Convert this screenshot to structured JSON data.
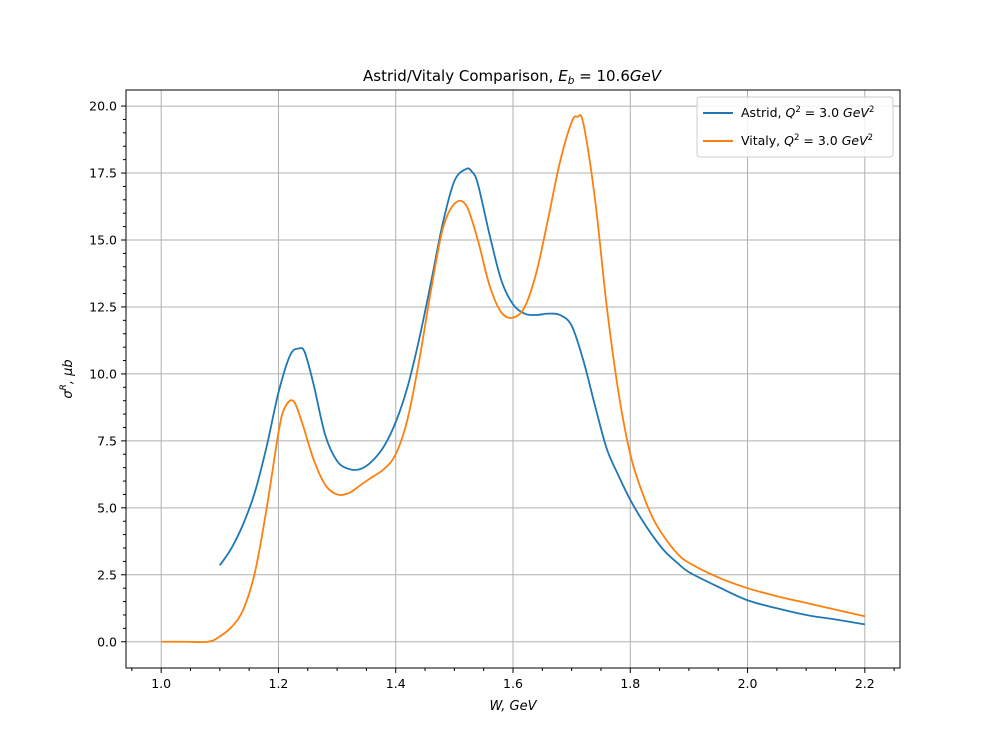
{
  "chart_data": {
    "type": "line",
    "title": {
      "prefix": "Astrid/Vitaly Comparison, ",
      "var": "E",
      "sub": "b",
      "rest": " = 10.6",
      "unit": "GeV"
    },
    "xlabel": {
      "text": "W, GeV"
    },
    "ylabel": {
      "text": "σ",
      "sup": "R",
      "rest": ", μb"
    },
    "xlim": [
      0.94,
      2.26
    ],
    "ylim": [
      -0.98,
      20.6
    ],
    "xticks": [
      1.0,
      1.2,
      1.4,
      1.6,
      1.8,
      2.0,
      2.2
    ],
    "xtick_labels": [
      "1.0",
      "1.2",
      "1.4",
      "1.6",
      "1.8",
      "2.0",
      "2.2"
    ],
    "yticks": [
      0,
      2.5,
      5,
      7.5,
      10,
      12.5,
      15,
      17.5,
      20
    ],
    "ytick_labels": [
      "0.0",
      "2.5",
      "5.0",
      "7.5",
      "10.0",
      "12.5",
      "15.0",
      "17.5",
      "20.0"
    ],
    "grid": true,
    "legend_position": "top-right",
    "series": [
      {
        "name": "Astrid, Q² = 3.0 GeV²",
        "legend": {
          "prefix": "Astrid, ",
          "var": "Q",
          "sup": "2",
          "mid": " = 3.0 ",
          "unit": "GeV",
          "usup": "2"
        },
        "color": "#1f77b4",
        "x": [
          1.1,
          1.12,
          1.14,
          1.16,
          1.18,
          1.2,
          1.22,
          1.235,
          1.245,
          1.26,
          1.28,
          1.3,
          1.32,
          1.34,
          1.36,
          1.38,
          1.4,
          1.42,
          1.44,
          1.46,
          1.48,
          1.5,
          1.52,
          1.53,
          1.54,
          1.56,
          1.58,
          1.6,
          1.62,
          1.64,
          1.66,
          1.68,
          1.7,
          1.72,
          1.74,
          1.76,
          1.78,
          1.8,
          1.82,
          1.84,
          1.86,
          1.88,
          1.9,
          1.95,
          2.0,
          2.05,
          2.1,
          2.15,
          2.2
        ],
        "y": [
          2.85,
          3.5,
          4.4,
          5.6,
          7.3,
          9.3,
          10.7,
          10.95,
          10.8,
          9.6,
          7.7,
          6.75,
          6.45,
          6.45,
          6.75,
          7.3,
          8.2,
          9.5,
          11.3,
          13.4,
          15.6,
          17.2,
          17.65,
          17.55,
          17.1,
          15.2,
          13.5,
          12.6,
          12.25,
          12.2,
          12.25,
          12.2,
          11.8,
          10.5,
          8.8,
          7.2,
          6.2,
          5.3,
          4.55,
          3.9,
          3.35,
          2.95,
          2.6,
          2.05,
          1.55,
          1.25,
          1.0,
          0.83,
          0.65
        ]
      },
      {
        "name": "Vitaly, Q² = 3.0 GeV²",
        "legend": {
          "prefix": "Vitaly, ",
          "var": "Q",
          "sup": "2",
          "mid": " = 3.0 ",
          "unit": "GeV",
          "usup": "2"
        },
        "color": "#ff7f0e",
        "x": [
          1.0,
          1.04,
          1.08,
          1.1,
          1.12,
          1.14,
          1.16,
          1.18,
          1.2,
          1.21,
          1.225,
          1.24,
          1.26,
          1.28,
          1.3,
          1.32,
          1.34,
          1.36,
          1.38,
          1.4,
          1.42,
          1.44,
          1.46,
          1.48,
          1.5,
          1.52,
          1.54,
          1.56,
          1.58,
          1.6,
          1.62,
          1.64,
          1.66,
          1.68,
          1.7,
          1.71,
          1.72,
          1.74,
          1.76,
          1.78,
          1.8,
          1.82,
          1.84,
          1.86,
          1.88,
          1.9,
          1.95,
          2.0,
          2.05,
          2.1,
          2.15,
          2.2
        ],
        "y": [
          0.0,
          0.0,
          0.0,
          0.2,
          0.55,
          1.2,
          2.6,
          5.0,
          7.8,
          8.7,
          9.0,
          8.2,
          6.8,
          5.85,
          5.5,
          5.55,
          5.85,
          6.15,
          6.45,
          7.0,
          8.3,
          10.5,
          13.1,
          15.4,
          16.35,
          16.3,
          15.0,
          13.3,
          12.3,
          12.1,
          12.5,
          13.8,
          15.8,
          17.9,
          19.4,
          19.6,
          19.35,
          16.5,
          12.5,
          9.3,
          7.0,
          5.6,
          4.55,
          3.85,
          3.3,
          2.95,
          2.4,
          2.0,
          1.7,
          1.45,
          1.2,
          0.95
        ]
      }
    ]
  }
}
